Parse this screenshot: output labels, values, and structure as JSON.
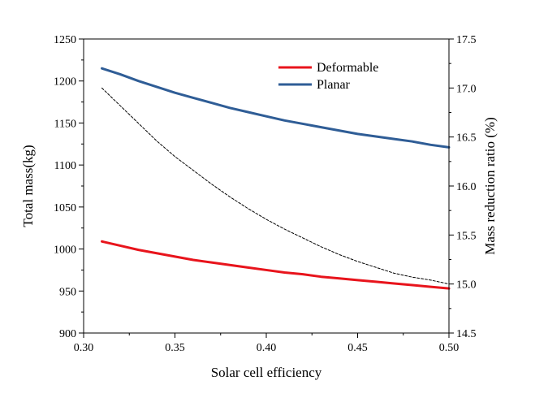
{
  "chart_data": {
    "type": "line",
    "title": "",
    "xlabel": "Solar cell efficiency",
    "ylabel": "Total mass(kg)",
    "y2label": "Mass reduction ratio (%)",
    "xlim": [
      0.3,
      0.5
    ],
    "ylim": [
      900,
      1250
    ],
    "y2lim": [
      14.5,
      17.5
    ],
    "x_ticks": [
      "0.30",
      "0.35",
      "0.40",
      "0.45",
      "0.50"
    ],
    "y_ticks": [
      "900",
      "950",
      "1000",
      "1050",
      "1100",
      "1150",
      "1200",
      "1250"
    ],
    "y2_ticks": [
      "14.5",
      "15.0",
      "15.5",
      "16.0",
      "16.5",
      "17.0",
      "17.5"
    ],
    "grid": false,
    "legend_position": "top-right",
    "series": [
      {
        "name": "Deformable",
        "axis": "left",
        "color": "#e8141c",
        "style": "solid",
        "x": [
          0.31,
          0.32,
          0.33,
          0.34,
          0.35,
          0.36,
          0.37,
          0.38,
          0.39,
          0.4,
          0.41,
          0.42,
          0.43,
          0.44,
          0.45,
          0.46,
          0.47,
          0.48,
          0.49,
          0.5
        ],
        "values": [
          1009,
          1004,
          999,
          995,
          991,
          987,
          984,
          981,
          978,
          975,
          972,
          970,
          967,
          965,
          963,
          961,
          959,
          957,
          955,
          953
        ]
      },
      {
        "name": "Planar",
        "axis": "left",
        "color": "#2f5d96",
        "style": "solid",
        "x": [
          0.31,
          0.32,
          0.33,
          0.34,
          0.35,
          0.36,
          0.37,
          0.38,
          0.39,
          0.4,
          0.41,
          0.42,
          0.43,
          0.44,
          0.45,
          0.46,
          0.47,
          0.48,
          0.49,
          0.5
        ],
        "values": [
          1215,
          1208,
          1200,
          1193,
          1186,
          1180,
          1174,
          1168,
          1163,
          1158,
          1153,
          1149,
          1145,
          1141,
          1137,
          1134,
          1131,
          1128,
          1124,
          1121
        ]
      },
      {
        "axis": "right",
        "color": "#000000",
        "style": "dashed",
        "x": [
          0.31,
          0.32,
          0.33,
          0.34,
          0.35,
          0.36,
          0.37,
          0.38,
          0.39,
          0.4,
          0.41,
          0.42,
          0.43,
          0.44,
          0.45,
          0.46,
          0.47,
          0.48,
          0.49,
          0.5
        ],
        "values": [
          17.0,
          16.82,
          16.64,
          16.46,
          16.3,
          16.16,
          16.02,
          15.89,
          15.77,
          15.66,
          15.56,
          15.47,
          15.38,
          15.3,
          15.23,
          15.17,
          15.11,
          15.07,
          15.04,
          15.0
        ]
      }
    ]
  }
}
